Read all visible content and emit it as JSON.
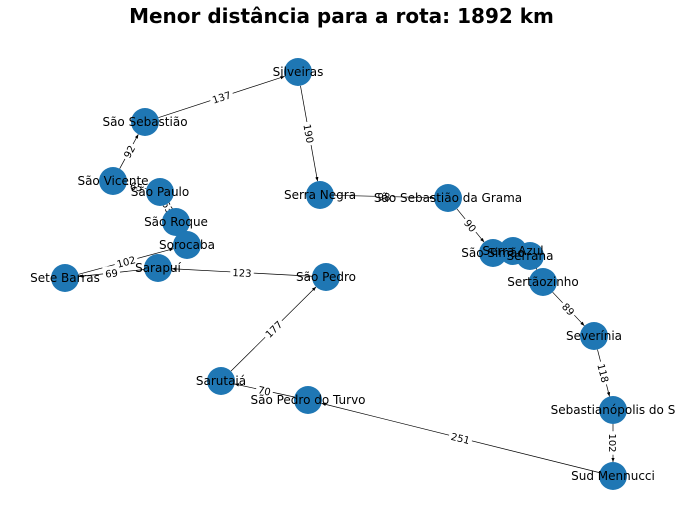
{
  "title": "Menor distância para a rota: 1892 km",
  "graph": {
    "nodes": [
      {
        "id": "silveiras",
        "label": "Silveiras"
      },
      {
        "id": "sao-sebastiao",
        "label": "São Sebastião"
      },
      {
        "id": "sao-vicente",
        "label": "São Vicente"
      },
      {
        "id": "sao-paulo",
        "label": "São Paulo"
      },
      {
        "id": "sao-roque",
        "label": "São Roque"
      },
      {
        "id": "sorocaba",
        "label": "Sorocaba"
      },
      {
        "id": "sarapui",
        "label": "Sarapuí"
      },
      {
        "id": "sete-barras",
        "label": "Sete Barras"
      },
      {
        "id": "sao-pedro",
        "label": "São Pedro"
      },
      {
        "id": "serra-negra",
        "label": "Serra Negra"
      },
      {
        "id": "sao-sebastiao-grama",
        "label": "São Sebastião da Grama"
      },
      {
        "id": "sao-simao",
        "label": "São Simão"
      },
      {
        "id": "serra-azul",
        "label": "Serra Azul"
      },
      {
        "id": "serrana",
        "label": "Serrana"
      },
      {
        "id": "sertaozinho",
        "label": "Sertãozinho"
      },
      {
        "id": "severinia",
        "label": "Severínia"
      },
      {
        "id": "sebastianopolis",
        "label": "Sebastianópolis do S"
      },
      {
        "id": "sud-mennucci",
        "label": "Sud Mennucci"
      },
      {
        "id": "sao-pedro-turvo",
        "label": "São Pedro do Turvo"
      },
      {
        "id": "sarutaia",
        "label": "Sarutaiá"
      }
    ],
    "edges": [
      {
        "from": "sao-sebastiao",
        "to": "silveiras",
        "weight": "137"
      },
      {
        "from": "silveiras",
        "to": "serra-negra",
        "weight": "190"
      },
      {
        "from": "serra-negra",
        "to": "sao-sebastiao-grama",
        "weight": "98"
      },
      {
        "from": "sao-sebastiao-grama",
        "to": "sao-simao",
        "weight": "90"
      },
      {
        "from": "sao-simao",
        "to": "serra-azul",
        "weight": ""
      },
      {
        "from": "serra-azul",
        "to": "serrana",
        "weight": ""
      },
      {
        "from": "serrana",
        "to": "sertaozinho",
        "weight": ""
      },
      {
        "from": "sertaozinho",
        "to": "severinia",
        "weight": "89"
      },
      {
        "from": "severinia",
        "to": "sebastianopolis",
        "weight": "118"
      },
      {
        "from": "sebastianopolis",
        "to": "sud-mennucci",
        "weight": "102"
      },
      {
        "from": "sud-mennucci",
        "to": "sao-pedro-turvo",
        "weight": "251"
      },
      {
        "from": "sao-pedro-turvo",
        "to": "sarutaia",
        "weight": "70"
      },
      {
        "from": "sarutaia",
        "to": "sao-pedro",
        "weight": "177"
      },
      {
        "from": "sao-pedro",
        "to": "sarapui",
        "weight": "123"
      },
      {
        "from": "sarapui",
        "to": "sete-barras",
        "weight": "69"
      },
      {
        "from": "sete-barras",
        "to": "sorocaba",
        "weight": "102"
      },
      {
        "from": "sorocaba",
        "to": "sao-roque",
        "weight": ""
      },
      {
        "from": "sao-roque",
        "to": "sao-paulo",
        "weight": "63"
      },
      {
        "from": "sao-paulo",
        "to": "sao-vicente",
        "weight": "65"
      },
      {
        "from": "sao-vicente",
        "to": "sao-sebastiao",
        "weight": "92"
      }
    ]
  }
}
